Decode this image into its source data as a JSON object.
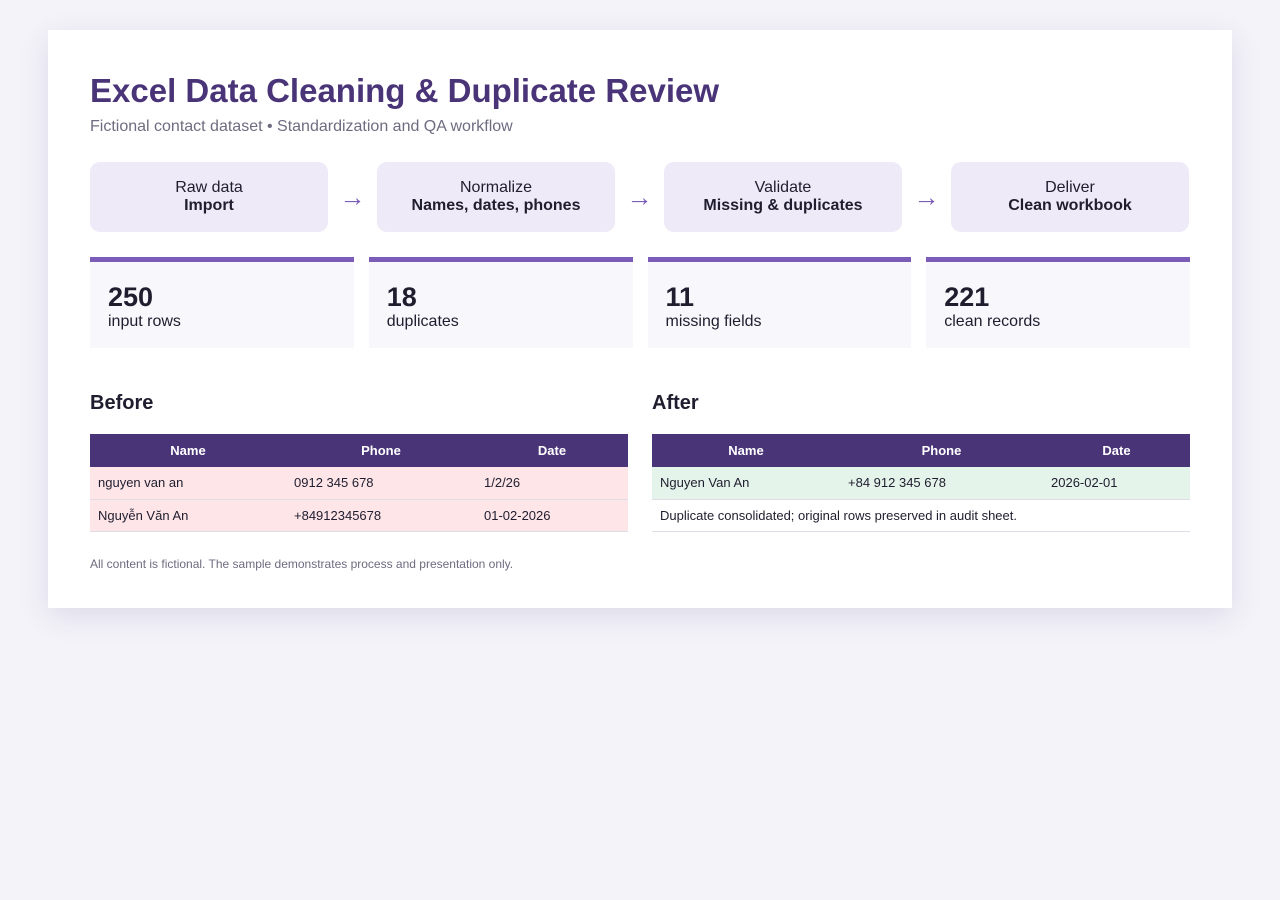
{
  "header": {
    "title": "Excel Data Cleaning & Duplicate Review",
    "subtitle": "Fictional contact dataset • Standardization and QA workflow"
  },
  "flow": {
    "arrow": "→",
    "steps": [
      {
        "label": "Raw data",
        "detail": "Import"
      },
      {
        "label": "Normalize",
        "detail": "Names, dates, phones"
      },
      {
        "label": "Validate",
        "detail": "Missing & duplicates"
      },
      {
        "label": "Deliver",
        "detail": "Clean workbook"
      }
    ]
  },
  "metrics": [
    {
      "value": "250",
      "label": "input rows"
    },
    {
      "value": "18",
      "label": "duplicates"
    },
    {
      "value": "11",
      "label": "missing fields"
    },
    {
      "value": "221",
      "label": "clean records"
    }
  ],
  "before": {
    "title": "Before",
    "columns": [
      "Name",
      "Phone",
      "Date"
    ],
    "rows": [
      [
        "nguyen van an",
        "0912 345 678",
        "1/2/26"
      ],
      [
        "Nguyễn Văn An",
        "+84912345678",
        "01-02-2026"
      ]
    ]
  },
  "after": {
    "title": "After",
    "columns": [
      "Name",
      "Phone",
      "Date"
    ],
    "rows": [
      [
        "Nguyen Van An",
        "+84 912 345 678",
        "2026-02-01"
      ]
    ],
    "note": "Duplicate consolidated; original rows preserved in audit sheet."
  },
  "footnote": "All content is fictional. The sample demonstrates process and presentation only.",
  "colors": {
    "accent": "#4a3478",
    "accent_light": "#7b5cb8",
    "before_row": "#fde5e8",
    "after_row": "#e4f4ea"
  }
}
